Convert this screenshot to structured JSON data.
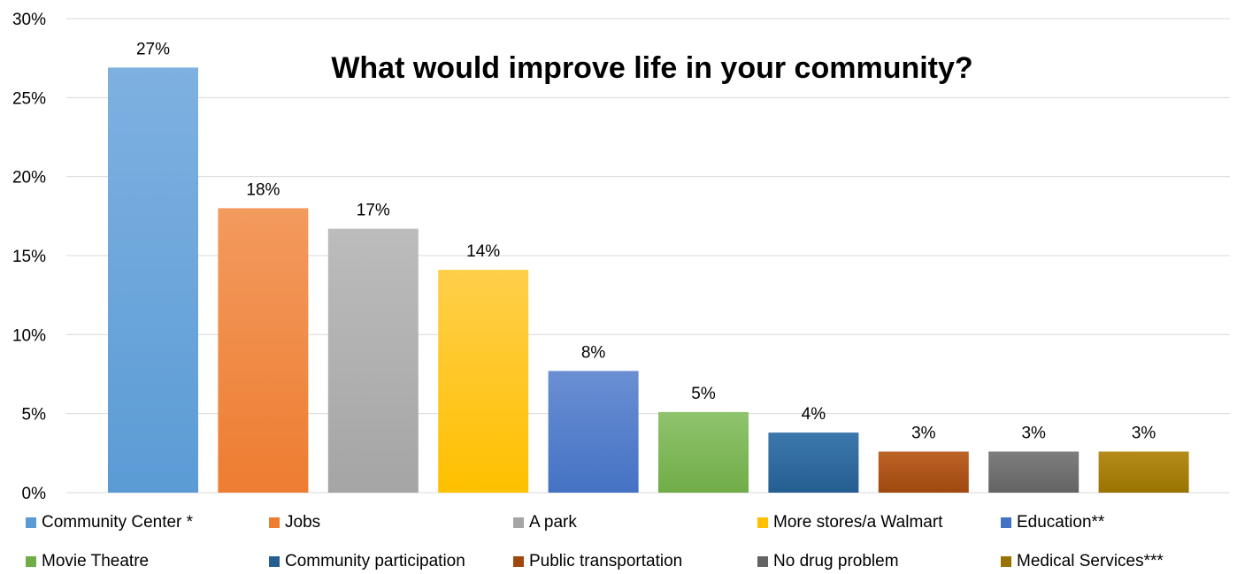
{
  "chart_data": {
    "type": "bar",
    "title": "What would improve life in your community?",
    "xlabel": "",
    "ylabel": "",
    "ylim": [
      0,
      30
    ],
    "yticks": [
      "0%",
      "5%",
      "10%",
      "15%",
      "20%",
      "25%",
      "30%"
    ],
    "ytick_values": [
      0,
      5,
      10,
      15,
      20,
      25,
      30
    ],
    "grid": true,
    "legend_position": "bottom",
    "categories": [
      "Community Center *",
      "Jobs",
      "A park",
      "More stores/a Walmart",
      "Education**",
      "Movie Theatre",
      "Community participation",
      "Public transportation",
      "No drug problem",
      "Medical Services***"
    ],
    "values": [
      26.9,
      18.0,
      16.7,
      14.1,
      7.7,
      5.1,
      3.8,
      2.6,
      2.6,
      2.6
    ],
    "data_labels": [
      "27%",
      "18%",
      "17%",
      "14%",
      "8%",
      "5%",
      "4%",
      "3%",
      "3%",
      "3%"
    ],
    "colors": [
      "#5b9bd5",
      "#ed7d31",
      "#a5a5a5",
      "#ffc000",
      "#4472c4",
      "#70ad47",
      "#255e91",
      "#9e480e",
      "#636363",
      "#997300"
    ],
    "colors_light": [
      "#7eb1e1",
      "#f39a5e",
      "#bcbcbc",
      "#ffcf4a",
      "#6a8fd3",
      "#8fc36e",
      "#3d78ad",
      "#bd6428",
      "#7e7e7e",
      "#b58c1a"
    ]
  }
}
